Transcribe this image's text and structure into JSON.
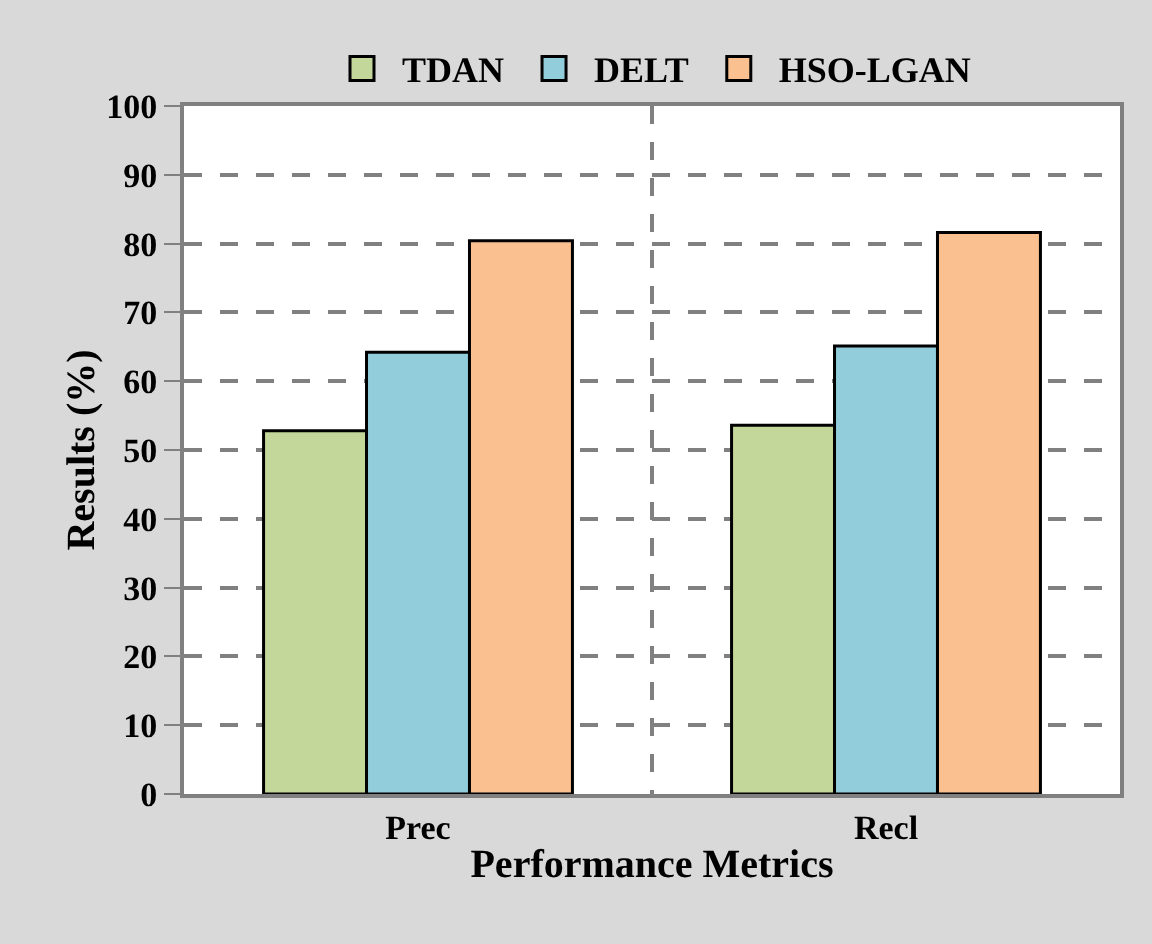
{
  "chart_data": {
    "type": "bar",
    "xlabel": "Performance Metrics",
    "ylabel": "Results (%)",
    "categories": [
      "Prec",
      "Recl"
    ],
    "series": [
      {
        "name": "TDAN",
        "color": "#c4d79b",
        "values": [
          52.8,
          53.6
        ]
      },
      {
        "name": "DELT",
        "color": "#92cddc",
        "values": [
          64.2,
          65.1
        ]
      },
      {
        "name": "HSO-LGAN",
        "color": "#fac090",
        "values": [
          80.4,
          81.6
        ]
      }
    ],
    "ylim": [
      0,
      100
    ],
    "yticks": [
      0,
      10,
      20,
      30,
      40,
      50,
      60,
      70,
      80,
      90,
      100
    ],
    "grid": true,
    "legend": "top"
  }
}
